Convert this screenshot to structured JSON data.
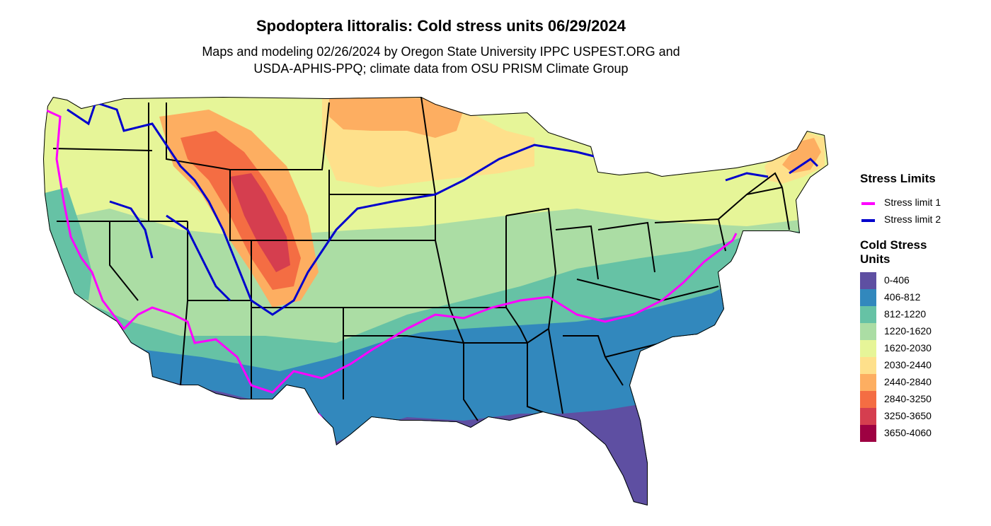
{
  "title": "Spodoptera littoralis: Cold stress units 06/29/2024",
  "subtitle_line1": "Maps and modeling 02/26/2024 by Oregon State University IPPC USPEST.ORG and",
  "subtitle_line2": "USDA-APHIS-PPQ; climate data from OSU PRISM Climate Group",
  "legend": {
    "stress_title": "Stress Limits",
    "stress_items": [
      {
        "label": "Stress limit 1",
        "color": "#ff00ff"
      },
      {
        "label": "Stress limit 2",
        "color": "#0000cd"
      }
    ],
    "units_title_line1": "Cold Stress",
    "units_title_line2": "Units",
    "classes": [
      {
        "label": "0-406",
        "color": "#5e4fa2"
      },
      {
        "label": "406-812",
        "color": "#3288bd"
      },
      {
        "label": "812-1220",
        "color": "#66c2a5"
      },
      {
        "label": "1220-1620",
        "color": "#abdda4"
      },
      {
        "label": "1620-2030",
        "color": "#e6f598"
      },
      {
        "label": "2030-2440",
        "color": "#fee08b"
      },
      {
        "label": "2440-2840",
        "color": "#fdae61"
      },
      {
        "label": "2840-3250",
        "color": "#f46d43"
      },
      {
        "label": "3250-3650",
        "color": "#d53e4f"
      },
      {
        "label": "3650-4060",
        "color": "#9e0142"
      }
    ]
  }
}
